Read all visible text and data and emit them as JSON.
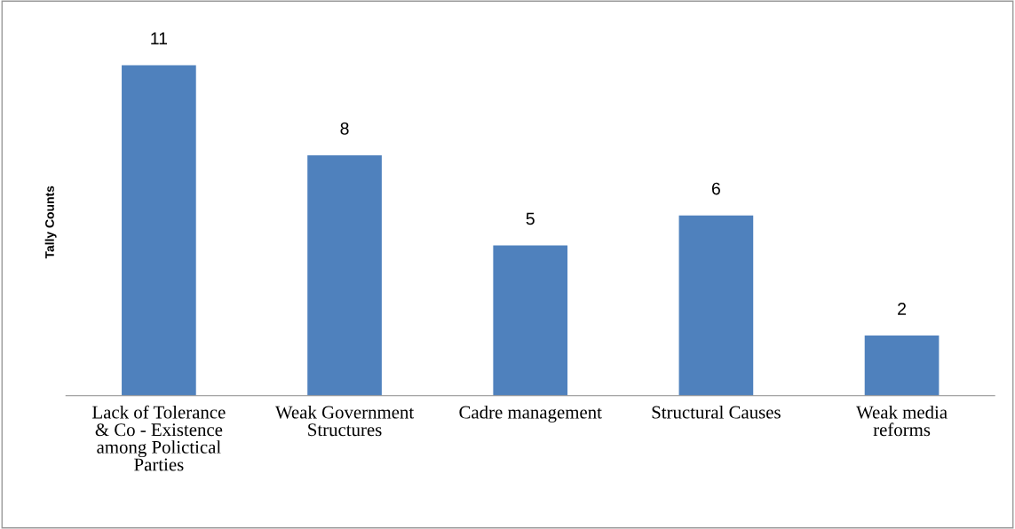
{
  "chart_data": {
    "type": "bar",
    "ylabel": "Tally Counts",
    "categories": [
      "Lack of Tolerance & Co - Existence among Polictical Parties",
      "Weak Government Structures",
      "Cadre management",
      "Structural Causes",
      "Weak media reforms"
    ],
    "values": [
      11,
      8,
      5,
      6,
      2
    ],
    "color": "#4f81bd",
    "data_labels": true,
    "grid": false,
    "legend": false
  }
}
